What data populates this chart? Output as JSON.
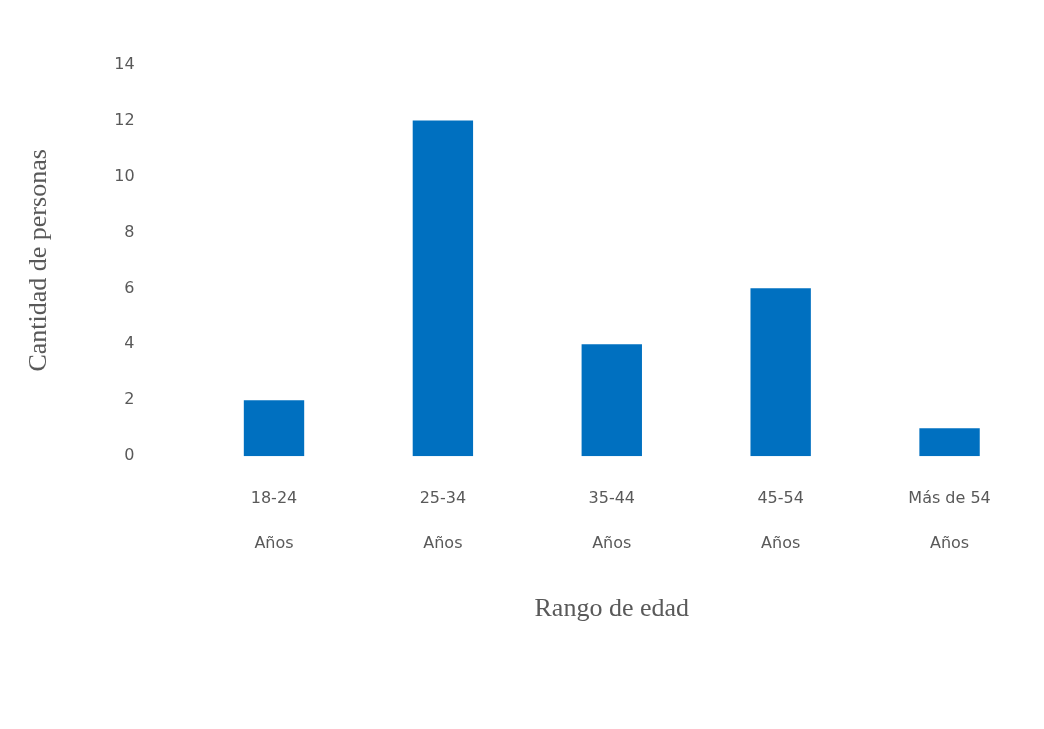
{
  "chart_data": {
    "type": "bar",
    "xlabel": "Rango de edad",
    "ylabel": "Cantidad de personas",
    "categories": [
      "18-24\nAños",
      "25-34\nAños",
      "35-44\nAños",
      "45-54\nAños",
      "Más de 54\nAños"
    ],
    "series": [
      {
        "color": "#0070c0",
        "values": [
          2,
          12,
          4,
          6,
          1
        ]
      }
    ],
    "ylim": [
      0,
      14
    ],
    "yticks": [
      0,
      2,
      4,
      6,
      8,
      10,
      12,
      14
    ],
    "grid": false,
    "legend": false
  }
}
